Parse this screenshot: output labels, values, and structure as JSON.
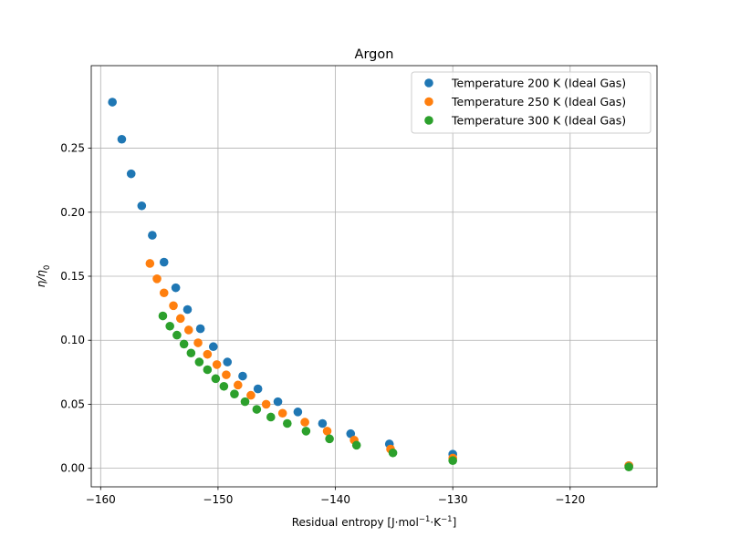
{
  "chart_data": {
    "type": "scatter",
    "title": "Argon",
    "xlabel": "Residual entropy [J·mol⁻¹·K⁻¹]",
    "ylabel": "η/η₀",
    "xlim": [
      -160.8,
      -112.6
    ],
    "ylim": [
      -0.0145,
      0.3145
    ],
    "xticks": [
      -160,
      -150,
      -140,
      -130,
      -120
    ],
    "yticks": [
      0.0,
      0.05,
      0.1,
      0.15,
      0.2,
      0.25
    ],
    "grid": true,
    "legend_position": "top-right",
    "series": [
      {
        "name": "Temperature 200 K (Ideal Gas)",
        "color": "#1f77b4",
        "x": [
          -159.0,
          -158.2,
          -157.4,
          -156.5,
          -155.6,
          -154.6,
          -153.6,
          -152.6,
          -151.5,
          -150.4,
          -149.2,
          -147.9,
          -146.6,
          -144.9,
          -143.2,
          -141.1,
          -138.7,
          -135.4,
          -130.0,
          -115.0
        ],
        "y": [
          0.286,
          0.257,
          0.23,
          0.205,
          0.182,
          0.161,
          0.141,
          0.124,
          0.109,
          0.095,
          0.083,
          0.072,
          0.062,
          0.052,
          0.044,
          0.035,
          0.027,
          0.019,
          0.011,
          0.002
        ]
      },
      {
        "name": "Temperature 250 K (Ideal Gas)",
        "color": "#ff7f0e",
        "x": [
          -155.8,
          -155.2,
          -154.6,
          -153.8,
          -153.2,
          -152.5,
          -151.7,
          -150.9,
          -150.1,
          -149.3,
          -148.3,
          -147.2,
          -145.9,
          -144.5,
          -142.6,
          -140.7,
          -138.4,
          -135.3,
          -130.0,
          -115.0
        ],
        "y": [
          0.16,
          0.148,
          0.137,
          0.127,
          0.117,
          0.108,
          0.098,
          0.089,
          0.081,
          0.073,
          0.065,
          0.057,
          0.05,
          0.043,
          0.036,
          0.029,
          0.022,
          0.015,
          0.008,
          0.002
        ]
      },
      {
        "name": "Temperature 300 K (Ideal Gas)",
        "color": "#2ca02c",
        "x": [
          -154.7,
          -154.1,
          -153.5,
          -152.9,
          -152.3,
          -151.6,
          -150.9,
          -150.2,
          -149.5,
          -148.6,
          -147.7,
          -146.7,
          -145.5,
          -144.1,
          -142.5,
          -140.5,
          -138.2,
          -135.1,
          -130.0,
          -115.0
        ],
        "y": [
          0.119,
          0.111,
          0.104,
          0.097,
          0.09,
          0.083,
          0.077,
          0.07,
          0.064,
          0.058,
          0.052,
          0.046,
          0.04,
          0.035,
          0.029,
          0.023,
          0.018,
          0.012,
          0.006,
          0.001
        ]
      }
    ]
  }
}
